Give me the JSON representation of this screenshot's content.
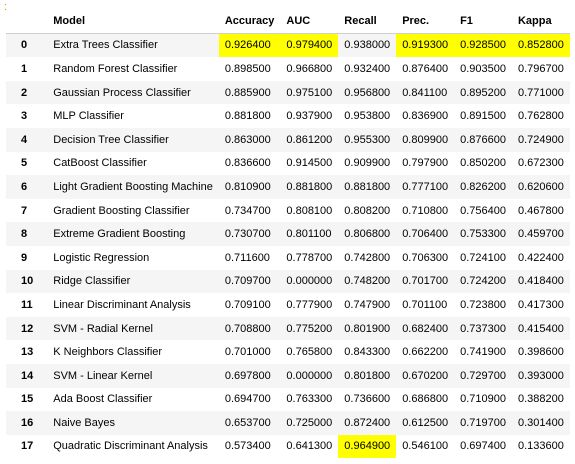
{
  "prompt_marker": ":",
  "highlight_color": "#ffff00",
  "columns": [
    "",
    "Model",
    "Accuracy",
    "AUC",
    "Recall",
    "Prec.",
    "F1",
    "Kappa"
  ],
  "rows": [
    {
      "idx": "0",
      "model": "Extra Trees Classifier",
      "accuracy": "0.926400",
      "auc": "0.979400",
      "recall": "0.938000",
      "prec": "0.919300",
      "f1": "0.928500",
      "kappa": "0.852800",
      "hl": [
        "accuracy",
        "auc",
        "prec",
        "f1",
        "kappa"
      ]
    },
    {
      "idx": "1",
      "model": "Random Forest Classifier",
      "accuracy": "0.898500",
      "auc": "0.966800",
      "recall": "0.932400",
      "prec": "0.876400",
      "f1": "0.903500",
      "kappa": "0.796700",
      "hl": []
    },
    {
      "idx": "2",
      "model": "Gaussian Process Classifier",
      "accuracy": "0.885900",
      "auc": "0.975100",
      "recall": "0.956800",
      "prec": "0.841100",
      "f1": "0.895200",
      "kappa": "0.771000",
      "hl": []
    },
    {
      "idx": "3",
      "model": "MLP Classifier",
      "accuracy": "0.881800",
      "auc": "0.937900",
      "recall": "0.953800",
      "prec": "0.836900",
      "f1": "0.891500",
      "kappa": "0.762800",
      "hl": []
    },
    {
      "idx": "4",
      "model": "Decision Tree Classifier",
      "accuracy": "0.863000",
      "auc": "0.861200",
      "recall": "0.955300",
      "prec": "0.809900",
      "f1": "0.876600",
      "kappa": "0.724900",
      "hl": []
    },
    {
      "idx": "5",
      "model": "CatBoost Classifier",
      "accuracy": "0.836600",
      "auc": "0.914500",
      "recall": "0.909900",
      "prec": "0.797900",
      "f1": "0.850200",
      "kappa": "0.672300",
      "hl": []
    },
    {
      "idx": "6",
      "model": "Light Gradient Boosting Machine",
      "accuracy": "0.810900",
      "auc": "0.881800",
      "recall": "0.881800",
      "prec": "0.777100",
      "f1": "0.826200",
      "kappa": "0.620600",
      "hl": []
    },
    {
      "idx": "7",
      "model": "Gradient Boosting Classifier",
      "accuracy": "0.734700",
      "auc": "0.808100",
      "recall": "0.808200",
      "prec": "0.710800",
      "f1": "0.756400",
      "kappa": "0.467800",
      "hl": []
    },
    {
      "idx": "8",
      "model": "Extreme Gradient Boosting",
      "accuracy": "0.730700",
      "auc": "0.801100",
      "recall": "0.806800",
      "prec": "0.706400",
      "f1": "0.753300",
      "kappa": "0.459700",
      "hl": []
    },
    {
      "idx": "9",
      "model": "Logistic Regression",
      "accuracy": "0.711600",
      "auc": "0.778700",
      "recall": "0.742800",
      "prec": "0.706300",
      "f1": "0.724100",
      "kappa": "0.422400",
      "hl": []
    },
    {
      "idx": "10",
      "model": "Ridge Classifier",
      "accuracy": "0.709700",
      "auc": "0.000000",
      "recall": "0.748200",
      "prec": "0.701700",
      "f1": "0.724200",
      "kappa": "0.418400",
      "hl": []
    },
    {
      "idx": "11",
      "model": "Linear Discriminant Analysis",
      "accuracy": "0.709100",
      "auc": "0.777900",
      "recall": "0.747900",
      "prec": "0.701100",
      "f1": "0.723800",
      "kappa": "0.417300",
      "hl": []
    },
    {
      "idx": "12",
      "model": "SVM - Radial Kernel",
      "accuracy": "0.708800",
      "auc": "0.775200",
      "recall": "0.801900",
      "prec": "0.682400",
      "f1": "0.737300",
      "kappa": "0.415400",
      "hl": []
    },
    {
      "idx": "13",
      "model": "K Neighbors Classifier",
      "accuracy": "0.701000",
      "auc": "0.765800",
      "recall": "0.843300",
      "prec": "0.662200",
      "f1": "0.741900",
      "kappa": "0.398600",
      "hl": []
    },
    {
      "idx": "14",
      "model": "SVM - Linear Kernel",
      "accuracy": "0.697800",
      "auc": "0.000000",
      "recall": "0.801800",
      "prec": "0.670200",
      "f1": "0.729700",
      "kappa": "0.393000",
      "hl": []
    },
    {
      "idx": "15",
      "model": "Ada Boost Classifier",
      "accuracy": "0.694700",
      "auc": "0.763300",
      "recall": "0.736600",
      "prec": "0.686800",
      "f1": "0.710900",
      "kappa": "0.388200",
      "hl": []
    },
    {
      "idx": "16",
      "model": "Naive Bayes",
      "accuracy": "0.653700",
      "auc": "0.725000",
      "recall": "0.872400",
      "prec": "0.612500",
      "f1": "0.719700",
      "kappa": "0.301400",
      "hl": []
    },
    {
      "idx": "17",
      "model": "Quadratic Discriminant Analysis",
      "accuracy": "0.573400",
      "auc": "0.641300",
      "recall": "0.964900",
      "prec": "0.546100",
      "f1": "0.697400",
      "kappa": "0.133600",
      "hl": [
        "recall"
      ]
    }
  ]
}
